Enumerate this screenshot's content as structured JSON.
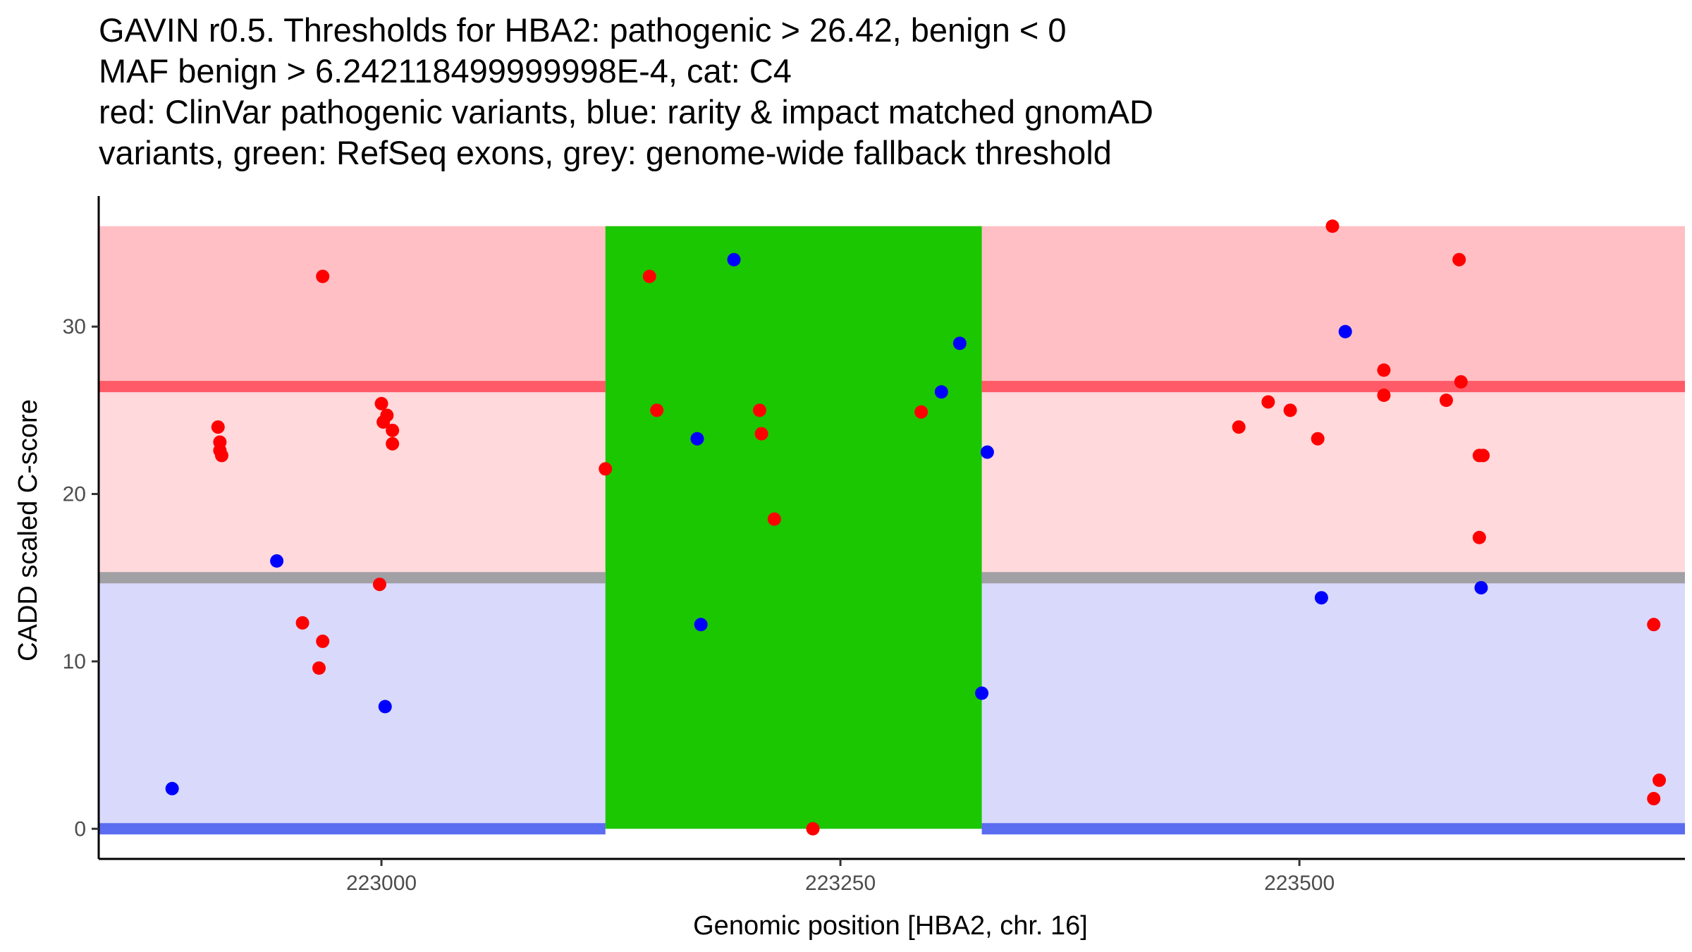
{
  "chart_data": {
    "type": "scatter",
    "title": [
      "GAVIN r0.5. Thresholds for HBA2: pathogenic > 26.42, benign < 0",
      "MAF benign > 6.242118499999998E-4, cat: C4",
      "red: ClinVar pathogenic variants, blue: rarity & impact matched gnomAD",
      "variants, green: RefSeq exons, grey: genome-wide fallback threshold"
    ],
    "xlabel": "Genomic position [HBA2, chr. 16]",
    "ylabel": "CADD scaled C-score",
    "xlim": [
      222846,
      223710
    ],
    "ylim": [
      -1.8,
      37.8
    ],
    "x_ticks": [
      223000,
      223250,
      223500
    ],
    "y_ticks": [
      0,
      10,
      20,
      30
    ],
    "grid": false,
    "bands": [
      {
        "name": "pathogenic-zone",
        "y0": 26.42,
        "y1": 36,
        "color": "#ffbfc4"
      },
      {
        "name": "intermediate-zone",
        "y0": 15,
        "y1": 26.42,
        "color": "#ffd9dc"
      },
      {
        "name": "benign-zone",
        "y0": 0,
        "y1": 15,
        "color": "#d9d9fc"
      }
    ],
    "threshold_lines": [
      {
        "name": "pathogenic-threshold",
        "y": 26.42,
        "color": "#ff5a67"
      },
      {
        "name": "fallback-threshold",
        "y": 15,
        "color": "#a0a0a5"
      },
      {
        "name": "benign-threshold",
        "y": 0,
        "color": "#5a6cf0"
      }
    ],
    "exon_region": {
      "x0": 223122,
      "x1": 223327,
      "y0": 0,
      "y1": 36,
      "color": "#1bc700"
    },
    "series": [
      {
        "name": "ClinVar pathogenic variants",
        "color": "#ff0000",
        "points": [
          [
            222911,
            24.0
          ],
          [
            222912,
            23.1
          ],
          [
            222912,
            22.6
          ],
          [
            222913,
            22.3
          ],
          [
            222957,
            12.3
          ],
          [
            222966,
            9.6
          ],
          [
            222968,
            11.2
          ],
          [
            222968,
            33.0
          ],
          [
            222999,
            14.6
          ],
          [
            223000,
            25.4
          ],
          [
            223001,
            24.3
          ],
          [
            223003,
            24.7
          ],
          [
            223006,
            23.8
          ],
          [
            223006,
            23.0
          ],
          [
            223122,
            21.5
          ],
          [
            223146,
            33.0
          ],
          [
            223150,
            25.0
          ],
          [
            223206,
            25.0
          ],
          [
            223207,
            23.6
          ],
          [
            223214,
            18.5
          ],
          [
            223235,
            0.0
          ],
          [
            223294,
            24.9
          ],
          [
            223467,
            24.0
          ],
          [
            223483,
            25.5
          ],
          [
            223495,
            25.0
          ],
          [
            223510,
            23.3
          ],
          [
            223518,
            36.0
          ],
          [
            223546,
            27.4
          ],
          [
            223546,
            25.9
          ],
          [
            223580,
            25.6
          ],
          [
            223587,
            34.0
          ],
          [
            223588,
            26.7
          ],
          [
            223598,
            22.3
          ],
          [
            223598,
            17.4
          ],
          [
            223600,
            22.3
          ],
          [
            223693,
            12.2
          ],
          [
            223693,
            1.8
          ],
          [
            223696,
            2.9
          ]
        ]
      },
      {
        "name": "rarity & impact matched gnomAD variants",
        "color": "#0000ff",
        "points": [
          [
            222886,
            2.4
          ],
          [
            222943,
            16.0
          ],
          [
            223002,
            7.3
          ],
          [
            223172,
            23.3
          ],
          [
            223174,
            12.2
          ],
          [
            223192,
            34.0
          ],
          [
            223305,
            26.1
          ],
          [
            223315,
            29.0
          ],
          [
            223327,
            8.1
          ],
          [
            223330,
            22.5
          ],
          [
            223512,
            13.8
          ],
          [
            223525,
            29.7
          ],
          [
            223599,
            14.4
          ]
        ]
      }
    ]
  }
}
